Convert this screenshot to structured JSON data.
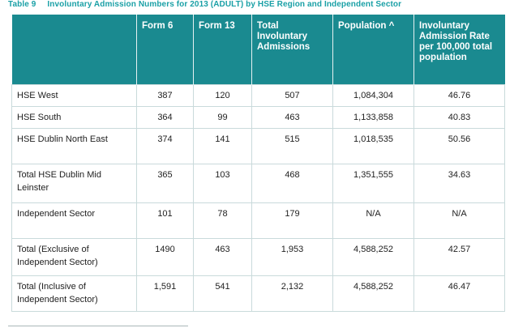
{
  "caption": {
    "number": "Table 9",
    "title": "Involuntary Admission Numbers for 2013 (ADULT) by HSE Region and Independent Sector"
  },
  "table": {
    "headers": [
      "",
      "Form 6",
      "Form 13",
      "Total Involuntary Admissions",
      "Population ^",
      "Involuntary Admission Rate per 100,000 total population"
    ],
    "rows": [
      [
        "HSE West",
        "387",
        "120",
        "507",
        "1,084,304",
        "46.76"
      ],
      [
        "HSE South",
        "364",
        "99",
        "463",
        "1,133,858",
        "40.83"
      ],
      [
        "HSE Dublin North East",
        "374",
        "141",
        "515",
        "1,018,535",
        "50.56"
      ],
      [
        "Total HSE Dublin Mid Leinster",
        "365",
        "103",
        "468",
        "1,351,555",
        "34.63"
      ],
      [
        "Independent Sector",
        "101",
        "78",
        "179",
        "N/A",
        "N/A"
      ],
      [
        "Total (Exclusive of Independent Sector)",
        "1490",
        "463",
        "1,953",
        "4,588,252",
        "42.57"
      ],
      [
        "Total (Inclusive of Independent Sector)",
        "1,591",
        "541",
        "2,132",
        "4,588,252",
        "46.47"
      ]
    ]
  }
}
